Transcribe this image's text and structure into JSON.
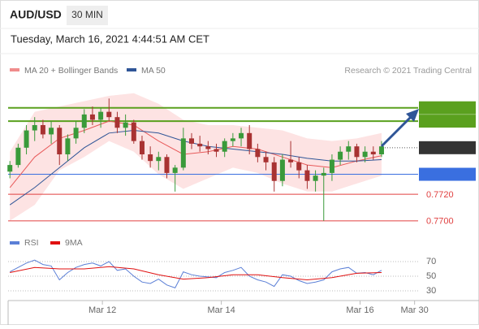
{
  "chart_data": [
    {
      "type": "candlestick",
      "title": "AUD/USD",
      "timeframe": "30 MIN",
      "subtitle": "Tuesday, March 16, 2021 4:44:51 AM CET",
      "source": "Research © 2021 Trading Central",
      "xlim": [
        -1.2,
        56.8
      ],
      "xticks": [
        {
          "value": 11.2,
          "label": "Mar 12"
        },
        {
          "value": 25.6,
          "label": "Mar 14"
        },
        {
          "value": 42.4,
          "label": "Mar 16"
        },
        {
          "value": 49,
          "label": "Mar 30"
        }
      ],
      "ylim": [
        0.7695,
        0.7805
      ],
      "up_color": "#3a9a3a",
      "down_color": "#a83232",
      "candles": [
        [
          0.7737,
          0.7745,
          0.7732,
          0.7742
        ],
        [
          0.7742,
          0.7758,
          0.774,
          0.7755
        ],
        [
          0.7755,
          0.7772,
          0.775,
          0.7768
        ],
        [
          0.7768,
          0.7778,
          0.776,
          0.7772
        ],
        [
          0.7772,
          0.7776,
          0.7762,
          0.7765
        ],
        [
          0.7765,
          0.7775,
          0.7758,
          0.777
        ],
        [
          0.777,
          0.7772,
          0.7742,
          0.775
        ],
        [
          0.775,
          0.7765,
          0.7745,
          0.7762
        ],
        [
          0.7762,
          0.7775,
          0.7758,
          0.777
        ],
        [
          0.777,
          0.7784,
          0.7766,
          0.778
        ],
        [
          0.778,
          0.7786,
          0.7772,
          0.7776
        ],
        [
          0.7776,
          0.7785,
          0.777,
          0.7782
        ],
        [
          0.7782,
          0.7792,
          0.7775,
          0.7778
        ],
        [
          0.7778,
          0.7782,
          0.7766,
          0.777
        ],
        [
          0.777,
          0.778,
          0.7764,
          0.7774
        ],
        [
          0.7774,
          0.7776,
          0.7758,
          0.776
        ],
        [
          0.776,
          0.7764,
          0.7746,
          0.775
        ],
        [
          0.775,
          0.7756,
          0.774,
          0.7745
        ],
        [
          0.7745,
          0.7752,
          0.7738,
          0.7748
        ],
        [
          0.7748,
          0.775,
          0.7732,
          0.7736
        ],
        [
          0.7736,
          0.7742,
          0.7722,
          0.774
        ],
        [
          0.774,
          0.777,
          0.7738,
          0.7762
        ],
        [
          0.7762,
          0.7766,
          0.7754,
          0.7758
        ],
        [
          0.7758,
          0.7764,
          0.7752,
          0.7756
        ],
        [
          0.7756,
          0.776,
          0.775,
          0.7754
        ],
        [
          0.7754,
          0.7758,
          0.7748,
          0.7752
        ],
        [
          0.7752,
          0.7762,
          0.7748,
          0.776
        ],
        [
          0.776,
          0.7766,
          0.7756,
          0.7762
        ],
        [
          0.7762,
          0.777,
          0.7756,
          0.7766
        ],
        [
          0.7766,
          0.7772,
          0.775,
          0.7754
        ],
        [
          0.7754,
          0.7758,
          0.7744,
          0.7748
        ],
        [
          0.7748,
          0.7752,
          0.7738,
          0.7744
        ],
        [
          0.7744,
          0.7748,
          0.7722,
          0.773
        ],
        [
          0.773,
          0.775,
          0.7726,
          0.7746
        ],
        [
          0.7746,
          0.776,
          0.774,
          0.7744
        ],
        [
          0.7744,
          0.7748,
          0.7732,
          0.7738
        ],
        [
          0.7738,
          0.7742,
          0.7724,
          0.773
        ],
        [
          0.773,
          0.7738,
          0.7722,
          0.7734
        ],
        [
          0.7734,
          0.774,
          0.77,
          0.7736
        ],
        [
          0.7736,
          0.775,
          0.773,
          0.7746
        ],
        [
          0.7746,
          0.7756,
          0.7742,
          0.7752
        ],
        [
          0.7752,
          0.776,
          0.7746,
          0.7756
        ],
        [
          0.7756,
          0.7758,
          0.7744,
          0.7748
        ],
        [
          0.7748,
          0.7756,
          0.7744,
          0.7752
        ],
        [
          0.7752,
          0.7756,
          0.7746,
          0.775
        ],
        [
          0.775,
          0.776,
          0.7748,
          0.7756
        ]
      ],
      "series": [
        {
          "name": "MA 20 + Bollinger Bands",
          "color": "#e85a5a",
          "legend_color": "#f08c8c",
          "band_color": "#fde3e3",
          "x": [
            0,
            3,
            6,
            9,
            12,
            15,
            18,
            21,
            24,
            27,
            30,
            33,
            36,
            39,
            42,
            45
          ],
          "values": [
            0.7725,
            0.7748,
            0.7762,
            0.7768,
            0.7775,
            0.7772,
            0.776,
            0.775,
            0.7752,
            0.7756,
            0.7754,
            0.7748,
            0.7742,
            0.774,
            0.7745,
            0.7749
          ],
          "upper": [
            0.7752,
            0.7782,
            0.7786,
            0.779,
            0.7794,
            0.7796,
            0.7788,
            0.7776,
            0.7772,
            0.7772,
            0.777,
            0.7768,
            0.7762,
            0.776,
            0.7762,
            0.7766
          ],
          "lower": [
            0.77,
            0.7712,
            0.7738,
            0.7748,
            0.776,
            0.7752,
            0.7735,
            0.7724,
            0.7732,
            0.774,
            0.7736,
            0.7728,
            0.7722,
            0.7722,
            0.7728,
            0.7734
          ]
        },
        {
          "name": "MA 50",
          "color": "#2f5597",
          "x": [
            0,
            3,
            6,
            9,
            12,
            15,
            18,
            21,
            24,
            27,
            30,
            33,
            36,
            39,
            42,
            45
          ],
          "values": [
            0.7712,
            0.7725,
            0.774,
            0.7755,
            0.7766,
            0.7768,
            0.7766,
            0.776,
            0.7756,
            0.7754,
            0.7752,
            0.775,
            0.7747,
            0.7745,
            0.7745,
            0.7746
          ]
        }
      ],
      "levels": [
        {
          "value": 0.7785,
          "color": "#5aa01e",
          "style": "box"
        },
        {
          "value": 0.7775,
          "color": "#5aa01e",
          "style": "box"
        },
        {
          "value": 0.7755,
          "color": "#333333",
          "style": "current"
        },
        {
          "value": 0.7735,
          "color": "#3a6fe0",
          "style": "box"
        },
        {
          "value": 0.772,
          "label": "0.7720",
          "color": "#e04040",
          "style": "text"
        },
        {
          "value": 0.77,
          "label": "0.7700",
          "color": "#e04040",
          "style": "text"
        }
      ]
    },
    {
      "type": "line",
      "ylim": [
        15,
        85
      ],
      "yticks": [
        30,
        50,
        70
      ],
      "series": [
        {
          "name": "RSI",
          "color": "#5b7fd6",
          "x": [
            0,
            1,
            2,
            3,
            4,
            5,
            6,
            7,
            8,
            9,
            10,
            11,
            12,
            13,
            14,
            15,
            16,
            17,
            18,
            19,
            20,
            21,
            22,
            23,
            24,
            25,
            26,
            27,
            28,
            29,
            30,
            31,
            32,
            33,
            34,
            35,
            36,
            37,
            38,
            39,
            40,
            41,
            42,
            43,
            44,
            45
          ],
          "values": [
            56,
            62,
            68,
            72,
            66,
            64,
            45,
            55,
            62,
            66,
            68,
            64,
            70,
            58,
            60,
            50,
            42,
            40,
            46,
            38,
            34,
            56,
            52,
            50,
            49,
            48,
            55,
            58,
            62,
            50,
            45,
            42,
            36,
            52,
            50,
            44,
            40,
            42,
            45,
            56,
            60,
            62,
            54,
            55,
            52,
            58
          ]
        },
        {
          "name": "9MA",
          "color": "#e01010",
          "x": [
            0,
            3,
            6,
            9,
            12,
            15,
            18,
            21,
            24,
            27,
            30,
            33,
            36,
            39,
            42,
            45
          ],
          "values": [
            55,
            62,
            60,
            60,
            63,
            60,
            52,
            46,
            48,
            52,
            52,
            48,
            45,
            48,
            54,
            55
          ]
        }
      ]
    }
  ]
}
